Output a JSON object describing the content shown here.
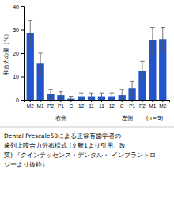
{
  "chart_data": {
    "type": "bar",
    "categories": [
      "M2",
      "M1",
      "P2",
      "P1",
      "C",
      "12",
      "11",
      "11",
      "12",
      "C",
      "P1",
      "P2",
      "M1",
      "M2"
    ],
    "values": [
      28.5,
      15.5,
      2.5,
      2.0,
      0.5,
      1.5,
      1.5,
      1.5,
      1.5,
      2.0,
      5.0,
      12.5,
      25.5,
      26.0
    ],
    "errors": [
      5.5,
      4.5,
      2.0,
      1.5,
      1.0,
      1.5,
      1.5,
      1.5,
      1.5,
      2.5,
      3.0,
      4.0,
      5.5,
      5.0
    ],
    "color": "#2255cc",
    "y_label": "和合力の量（%）",
    "ylim": [
      0,
      40
    ],
    "yticks": [
      0,
      10,
      20,
      30,
      40
    ],
    "annotations": [
      "右側",
      "左側",
      "(n＝9)"
    ],
    "caption": [
      "Dental Prescale50による正常有歯学者の",
      "歯列上咬合力分布様式 (文献1より引用、改",
      "変) 『クインテッセンス・デンタル・ インプラントロ",
      "ジーより抜粋』"
    ]
  }
}
